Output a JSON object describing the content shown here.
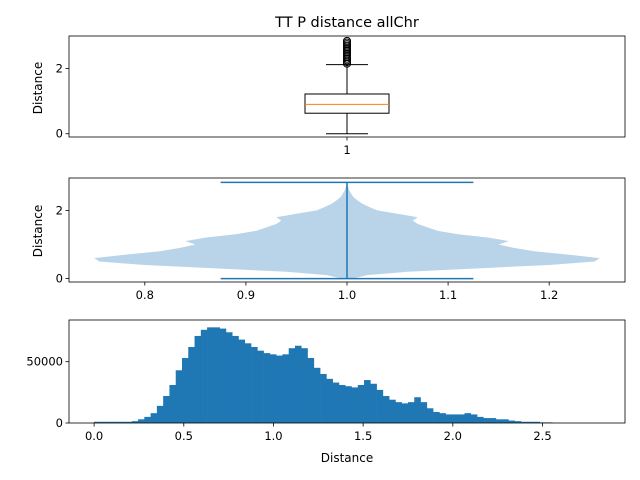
{
  "chart_data": [
    {
      "type": "box",
      "title": "TT P distance allChr",
      "xlabel": "",
      "ylabel": "Distance",
      "categories": [
        "1"
      ],
      "ylim": [
        -0.1,
        3.0
      ],
      "yticks": [
        0,
        2
      ],
      "box": {
        "whisker_low": 0.0,
        "q1": 0.63,
        "median": 0.9,
        "q3": 1.22,
        "whisker_high": 2.12
      },
      "outliers": [
        2.15,
        2.2,
        2.25,
        2.3,
        2.35,
        2.4,
        2.45,
        2.5,
        2.55,
        2.6,
        2.65,
        2.7,
        2.75,
        2.8,
        2.85
      ],
      "colors": {
        "box": "#000000",
        "median": "#ff7f0e",
        "outlier": "#000000"
      }
    },
    {
      "type": "violin",
      "xlabel": "",
      "ylabel": "Distance",
      "xlim": [
        0.725,
        1.275
      ],
      "ylim": [
        -0.1,
        2.95
      ],
      "xticks": [
        0.8,
        0.9,
        1.0,
        1.1,
        1.2
      ],
      "position": 1.0,
      "extent": {
        "min": 0.0,
        "max": 2.82
      },
      "density": {
        "y": [
          0.0,
          0.1,
          0.2,
          0.3,
          0.4,
          0.5,
          0.6,
          0.7,
          0.8,
          0.9,
          1.0,
          1.1,
          1.2,
          1.3,
          1.4,
          1.5,
          1.6,
          1.7,
          1.8,
          1.9,
          2.0,
          2.1,
          2.2,
          2.3,
          2.4,
          2.5,
          2.6,
          2.7,
          2.82
        ],
        "half_width": [
          0.005,
          0.02,
          0.06,
          0.13,
          0.2,
          0.245,
          0.25,
          0.22,
          0.185,
          0.165,
          0.15,
          0.16,
          0.14,
          0.11,
          0.09,
          0.08,
          0.07,
          0.065,
          0.07,
          0.05,
          0.03,
          0.022,
          0.015,
          0.01,
          0.006,
          0.004,
          0.002,
          0.001,
          0.0
        ]
      },
      "colors": {
        "body": "#b9d3e8",
        "lines": "#1f77b4"
      }
    },
    {
      "type": "histogram",
      "xlabel": "Distance",
      "ylabel": "",
      "xlim": [
        -0.14,
        2.96
      ],
      "ylim": [
        0,
        84000
      ],
      "xticks": [
        0.0,
        0.5,
        1.0,
        1.5,
        2.0,
        2.5
      ],
      "yticks": [
        0,
        50000
      ],
      "bin_start": 0.0,
      "bin_width": 0.035,
      "counts": [
        1000,
        1000,
        1000,
        1000,
        1000,
        1000,
        1500,
        3000,
        5000,
        8000,
        14000,
        22000,
        31000,
        43000,
        53000,
        62000,
        71000,
        76000,
        78000,
        78000,
        77000,
        74000,
        71000,
        68000,
        65000,
        62000,
        59000,
        57000,
        56000,
        55000,
        56000,
        61000,
        63000,
        61000,
        53000,
        45000,
        40000,
        36000,
        33000,
        31000,
        30000,
        29000,
        31000,
        35000,
        32000,
        27000,
        22000,
        19000,
        17000,
        16000,
        17000,
        21000,
        17000,
        12000,
        9000,
        8000,
        7000,
        7000,
        7000,
        8000,
        7000,
        5000,
        4000,
        4000,
        3000,
        3000,
        2000,
        1500,
        1000,
        1000,
        1000,
        500,
        500
      ],
      "colors": {
        "bars": "#1f77b4"
      }
    }
  ]
}
